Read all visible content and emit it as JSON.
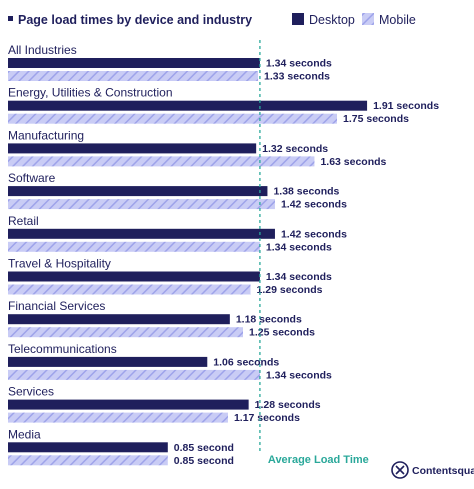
{
  "chart_data": {
    "type": "bar",
    "orientation": "horizontal",
    "title": "Page load times by device and industry",
    "categories": [
      "All Industries",
      "Energy, Utilities & Construction",
      "Manufacturing",
      "Software",
      "Retail",
      "Travel & Hospitality",
      "Financial Services",
      "Telecommunications",
      "Services",
      "Media"
    ],
    "series": [
      {
        "name": "Desktop",
        "color": "#1f1f5c",
        "values": [
          1.34,
          1.91,
          1.32,
          1.38,
          1.42,
          1.34,
          1.18,
          1.06,
          1.28,
          0.85
        ],
        "labels": [
          "1.34 seconds",
          "1.91 seconds",
          "1.32 seconds",
          "1.38 seconds",
          "1.42 seconds",
          "1.34 seconds",
          "1.18 seconds",
          "1.06 seconds",
          "1.28 seconds",
          "0.85  second"
        ]
      },
      {
        "name": "Mobile",
        "color": "#b9bdf2",
        "pattern": "diagonal-stripes",
        "values": [
          1.33,
          1.75,
          1.63,
          1.42,
          1.34,
          1.29,
          1.25,
          1.34,
          1.17,
          0.85
        ],
        "labels": [
          "1.33 seconds",
          "1.75 seconds",
          "1.63 seconds",
          "1.42 seconds",
          "1.34 seconds",
          "1.29 seconds",
          "1.25 seconds",
          "1.34 seconds",
          "1.17 seconds",
          "0.85  second"
        ]
      }
    ],
    "reference_line": {
      "value": 1.34,
      "label": "Average Load Time",
      "color": "#2aa89a"
    },
    "legend_position": "top-right",
    "grid": false
  },
  "brand": {
    "name": "Contentsquare"
  }
}
